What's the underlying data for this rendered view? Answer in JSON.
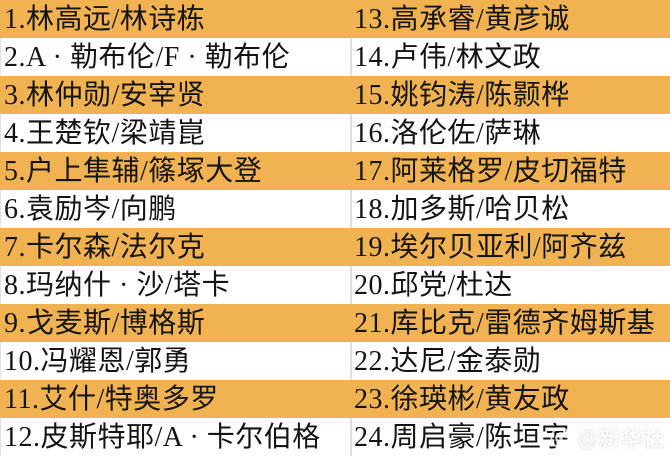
{
  "colors": {
    "highlight": "#F1B351",
    "stripe": "#FFFFFF",
    "text": "#141414",
    "divider": "#E0DEDC"
  },
  "rows": [
    {
      "left": "1.林高远/林诗栋",
      "right": "13.高承睿/黄彦诚",
      "highlight": true
    },
    {
      "left": "2.A · 勒布伦/F · 勒布伦",
      "right": "14.卢伟/林文政",
      "highlight": false
    },
    {
      "left": "3.林仲勋/安宰贤",
      "right": "15.姚钧涛/陈颢桦",
      "highlight": true
    },
    {
      "left": "4.王楚钦/梁靖崑",
      "right": "16.洛伦佐/萨琳",
      "highlight": false
    },
    {
      "left": "5.户上隼辅/篠塚大登",
      "right": "17.阿莱格罗/皮切福特",
      "highlight": true
    },
    {
      "left": "6.袁励岑/向鹏",
      "right": "18.加多斯/哈贝松",
      "highlight": false
    },
    {
      "left": "7.卡尔森/法尔克",
      "right": "19.埃尔贝亚利/阿齐兹",
      "highlight": true
    },
    {
      "left": "8.玛纳什 · 沙/塔卡",
      "right": "20.邱党/杜达",
      "highlight": false
    },
    {
      "left": "9.戈麦斯/博格斯",
      "right": "21.库比克/雷德齐姆斯基",
      "highlight": true
    },
    {
      "left": "10.冯耀恩/郭勇",
      "right": "22.达尼/金泰勋",
      "highlight": false
    },
    {
      "left": "11.艾什/特奥多罗",
      "right": "23.徐瑛彬/黄友政",
      "highlight": true
    },
    {
      "left": "12.皮斯特耶/A · 卡尔伯格",
      "right": "24.周启豪/陈垣宇",
      "highlight": false
    }
  ],
  "watermark": {
    "icon": "weibo-logo-icon",
    "text": "@新华社"
  }
}
